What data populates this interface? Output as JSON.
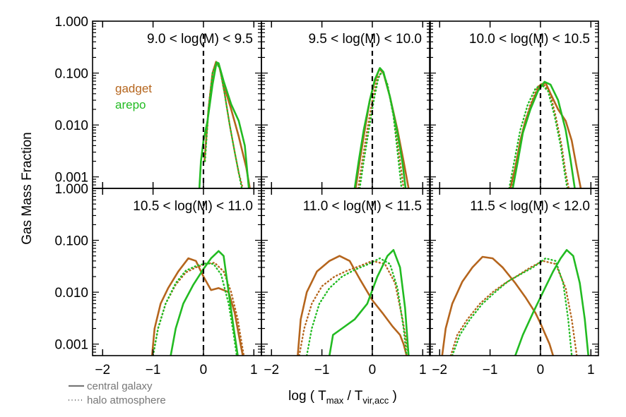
{
  "chart_data": {
    "type": "line",
    "ylabel": "Gas Mass Fraction",
    "xlabel_parts": {
      "prefix": "log ( T",
      "sub1": "max",
      "mid": " / T",
      "sub2": "vir,acc",
      "suffix": " )"
    },
    "xlim": [
      -2.2,
      1.15
    ],
    "ylim": [
      0.0006,
      1.0
    ],
    "yscale": "log",
    "xticks": [
      -2,
      -1,
      0,
      1
    ],
    "xtick_labels": [
      "−2",
      "−1",
      "0",
      "1"
    ],
    "yticks": [
      0.001,
      0.01,
      0.1,
      1.0
    ],
    "ytick_labels": [
      "0.001",
      "0.010",
      "0.100",
      "1.000"
    ],
    "reference_line_x": 0,
    "colors": {
      "gadget": "#b5651d",
      "arepo": "#22bb22",
      "reference": "#000000",
      "line_legend": "#777777"
    },
    "series_legend": [
      {
        "name": "gadget",
        "color": "#b5651d"
      },
      {
        "name": "arepo",
        "color": "#22bb22"
      }
    ],
    "line_legend": [
      {
        "label": "central galaxy",
        "style": "solid"
      },
      {
        "label": "halo atmosphere",
        "style": "dotted"
      }
    ],
    "panels": [
      {
        "title": "9.0 < log(M) <  9.5",
        "series": [
          {
            "name": "gadget",
            "style": "solid",
            "x": [
              0.02,
              0.1,
              0.18,
              0.25,
              0.3,
              0.4,
              0.55,
              0.7,
              0.85,
              0.92
            ],
            "y": [
              0.002,
              0.02,
              0.1,
              0.165,
              0.15,
              0.06,
              0.02,
              0.006,
              0.0015,
              0.0006
            ]
          },
          {
            "name": "gadget",
            "style": "dotted",
            "x": [
              0.03,
              0.1,
              0.18,
              0.25,
              0.32,
              0.42,
              0.52,
              0.62,
              0.7,
              0.78
            ],
            "y": [
              0.002,
              0.02,
              0.1,
              0.16,
              0.13,
              0.04,
              0.01,
              0.003,
              0.0012,
              0.0006
            ]
          },
          {
            "name": "arepo",
            "style": "solid",
            "x": [
              -0.08,
              -0.05,
              0.0,
              0.08,
              0.18,
              0.26,
              0.3,
              0.4,
              0.55,
              0.7,
              0.82,
              0.9
            ],
            "y": [
              0.0006,
              0.002,
              0.005,
              0.012,
              0.06,
              0.16,
              0.155,
              0.07,
              0.025,
              0.012,
              0.004,
              0.0006
            ]
          },
          {
            "name": "arepo",
            "style": "dotted",
            "x": [
              0.03,
              0.1,
              0.18,
              0.26,
              0.33,
              0.42,
              0.52,
              0.62,
              0.7,
              0.76
            ],
            "y": [
              0.002,
              0.02,
              0.1,
              0.155,
              0.12,
              0.04,
              0.01,
              0.003,
              0.0012,
              0.0006
            ]
          }
        ]
      },
      {
        "title": "9.5 < log(M) < 10.0",
        "series": [
          {
            "name": "gadget",
            "style": "solid",
            "x": [
              -0.33,
              -0.25,
              -0.15,
              -0.05,
              0.05,
              0.14,
              0.22,
              0.35,
              0.5,
              0.62,
              0.72
            ],
            "y": [
              0.0006,
              0.002,
              0.008,
              0.03,
              0.07,
              0.12,
              0.1,
              0.035,
              0.008,
              0.002,
              0.0006
            ]
          },
          {
            "name": "gadget",
            "style": "dotted",
            "x": [
              -0.28,
              -0.2,
              -0.1,
              0.0,
              0.1,
              0.2,
              0.3,
              0.42,
              0.55,
              0.62
            ],
            "y": [
              0.0006,
              0.002,
              0.008,
              0.03,
              0.08,
              0.11,
              0.06,
              0.015,
              0.002,
              0.0006
            ]
          },
          {
            "name": "arepo",
            "style": "solid",
            "x": [
              -0.35,
              -0.27,
              -0.17,
              -0.05,
              0.05,
              0.15,
              0.22,
              0.35,
              0.5,
              0.6,
              0.66
            ],
            "y": [
              0.0006,
              0.002,
              0.008,
              0.03,
              0.075,
              0.125,
              0.105,
              0.035,
              0.007,
              0.0018,
              0.0006
            ]
          },
          {
            "name": "arepo",
            "style": "dotted",
            "x": [
              -0.25,
              -0.17,
              -0.07,
              0.03,
              0.12,
              0.2,
              0.3,
              0.42,
              0.52,
              0.58
            ],
            "y": [
              0.0006,
              0.002,
              0.008,
              0.03,
              0.08,
              0.11,
              0.06,
              0.015,
              0.002,
              0.0006
            ]
          }
        ]
      },
      {
        "title": "10.0 < log(M) < 10.5",
        "series": [
          {
            "name": "gadget",
            "style": "solid",
            "x": [
              -0.6,
              -0.5,
              -0.4,
              -0.3,
              -0.15,
              0.0,
              0.1,
              0.2,
              0.35,
              0.5,
              0.62,
              0.72,
              0.8
            ],
            "y": [
              0.0006,
              0.0015,
              0.005,
              0.012,
              0.03,
              0.06,
              0.065,
              0.04,
              0.02,
              0.012,
              0.005,
              0.0015,
              0.0006
            ]
          },
          {
            "name": "gadget",
            "style": "dotted",
            "x": [
              -0.58,
              -0.48,
              -0.35,
              -0.2,
              -0.05,
              0.05,
              0.18,
              0.3,
              0.42,
              0.5,
              0.56
            ],
            "y": [
              0.0006,
              0.002,
              0.008,
              0.025,
              0.055,
              0.062,
              0.045,
              0.015,
              0.004,
              0.0012,
              0.0006
            ]
          },
          {
            "name": "arepo",
            "style": "solid",
            "x": [
              -0.55,
              -0.45,
              -0.35,
              -0.2,
              -0.05,
              0.08,
              0.2,
              0.35,
              0.5,
              0.6,
              0.68
            ],
            "y": [
              0.0006,
              0.002,
              0.007,
              0.02,
              0.045,
              0.068,
              0.06,
              0.03,
              0.008,
              0.002,
              0.0006
            ]
          },
          {
            "name": "arepo",
            "style": "dotted",
            "x": [
              -0.62,
              -0.52,
              -0.4,
              -0.25,
              -0.1,
              0.02,
              0.15,
              0.28,
              0.4,
              0.48,
              0.53
            ],
            "y": [
              0.0006,
              0.002,
              0.008,
              0.025,
              0.05,
              0.06,
              0.045,
              0.015,
              0.004,
              0.0012,
              0.0006
            ]
          }
        ]
      },
      {
        "title": "10.5 < log(M) < 11.0",
        "series": [
          {
            "name": "gadget",
            "style": "solid",
            "x": [
              -1.02,
              -0.97,
              -0.85,
              -0.7,
              -0.5,
              -0.3,
              -0.15,
              0.0,
              0.15,
              0.3,
              0.5,
              0.62,
              0.72,
              0.78
            ],
            "y": [
              0.0006,
              0.002,
              0.006,
              0.012,
              0.025,
              0.045,
              0.04,
              0.02,
              0.011,
              0.012,
              0.01,
              0.004,
              0.0012,
              0.0006
            ]
          },
          {
            "name": "gadget",
            "style": "dotted",
            "x": [
              -1.0,
              -0.9,
              -0.75,
              -0.55,
              -0.35,
              -0.15,
              0.05,
              0.22,
              0.4,
              0.55,
              0.68,
              0.8
            ],
            "y": [
              0.0006,
              0.002,
              0.006,
              0.014,
              0.024,
              0.03,
              0.035,
              0.037,
              0.025,
              0.01,
              0.003,
              0.0006
            ]
          },
          {
            "name": "arepo",
            "style": "solid",
            "x": [
              -0.65,
              -0.55,
              -0.4,
              -0.2,
              0.0,
              0.15,
              0.3,
              0.4,
              0.5,
              0.6,
              0.68
            ],
            "y": [
              0.0006,
              0.002,
              0.006,
              0.014,
              0.028,
              0.045,
              0.062,
              0.05,
              0.01,
              0.002,
              0.0006
            ]
          },
          {
            "name": "arepo",
            "style": "dotted",
            "x": [
              -1.0,
              -0.9,
              -0.75,
              -0.55,
              -0.35,
              -0.15,
              0.05,
              0.2,
              0.35,
              0.5,
              0.6,
              0.66
            ],
            "y": [
              0.0006,
              0.002,
              0.006,
              0.015,
              0.026,
              0.032,
              0.036,
              0.035,
              0.022,
              0.006,
              0.0015,
              0.0006
            ]
          }
        ]
      },
      {
        "title": "11.0 < log(M) < 11.5",
        "series": [
          {
            "name": "gadget",
            "style": "solid",
            "x": [
              -1.48,
              -1.42,
              -1.3,
              -1.1,
              -0.85,
              -0.65,
              -0.45,
              -0.25,
              0.0,
              0.2,
              0.4,
              0.55,
              0.62,
              0.68
            ],
            "y": [
              0.0006,
              0.003,
              0.01,
              0.025,
              0.04,
              0.05,
              0.04,
              0.018,
              0.007,
              0.004,
              0.0022,
              0.0015,
              0.001,
              0.0006
            ]
          },
          {
            "name": "gadget",
            "style": "dotted",
            "x": [
              -1.45,
              -1.35,
              -1.2,
              -1.0,
              -0.75,
              -0.5,
              -0.25,
              0.0,
              0.25,
              0.45,
              0.6,
              0.72
            ],
            "y": [
              0.0006,
              0.002,
              0.006,
              0.013,
              0.02,
              0.026,
              0.032,
              0.04,
              0.035,
              0.015,
              0.003,
              0.0006
            ]
          },
          {
            "name": "arepo",
            "style": "solid",
            "x": [
              -0.85,
              -0.78,
              -0.6,
              -0.35,
              -0.1,
              0.1,
              0.3,
              0.42,
              0.55,
              0.65,
              0.72
            ],
            "y": [
              0.0006,
              0.0015,
              0.002,
              0.003,
              0.006,
              0.02,
              0.05,
              0.065,
              0.03,
              0.005,
              0.0006
            ]
          },
          {
            "name": "arepo",
            "style": "dotted",
            "x": [
              -1.3,
              -1.2,
              -1.05,
              -0.85,
              -0.6,
              -0.35,
              -0.1,
              0.15,
              0.35,
              0.5,
              0.62,
              0.68
            ],
            "y": [
              0.0006,
              0.002,
              0.006,
              0.012,
              0.02,
              0.027,
              0.034,
              0.045,
              0.035,
              0.012,
              0.002,
              0.0006
            ]
          }
        ]
      },
      {
        "title": "11.5 < log(M) < 12.0",
        "series": [
          {
            "name": "gadget",
            "style": "solid",
            "x": [
              -1.95,
              -1.88,
              -1.75,
              -1.55,
              -1.35,
              -1.15,
              -0.95,
              -0.75,
              -0.5,
              -0.3,
              -0.1,
              0.0,
              0.1,
              0.18,
              0.25
            ],
            "y": [
              0.0006,
              0.002,
              0.006,
              0.016,
              0.03,
              0.048,
              0.045,
              0.03,
              0.015,
              0.008,
              0.004,
              0.0025,
              0.0015,
              0.001,
              0.0006
            ]
          },
          {
            "name": "gadget",
            "style": "dotted",
            "x": [
              -1.78,
              -1.65,
              -1.45,
              -1.2,
              -0.95,
              -0.7,
              -0.45,
              -0.2,
              0.05,
              0.3,
              0.5,
              0.62,
              0.72
            ],
            "y": [
              0.0006,
              0.0015,
              0.003,
              0.006,
              0.01,
              0.015,
              0.021,
              0.03,
              0.04,
              0.035,
              0.012,
              0.003,
              0.0006
            ]
          },
          {
            "name": "arepo",
            "style": "solid",
            "x": [
              -0.5,
              -0.35,
              -0.15,
              0.05,
              0.25,
              0.4,
              0.52,
              0.65,
              0.78,
              0.88,
              0.95
            ],
            "y": [
              0.0006,
              0.0015,
              0.004,
              0.01,
              0.025,
              0.045,
              0.065,
              0.05,
              0.015,
              0.003,
              0.0006
            ]
          },
          {
            "name": "arepo",
            "style": "dotted",
            "x": [
              -1.75,
              -1.6,
              -1.4,
              -1.15,
              -0.9,
              -0.65,
              -0.4,
              -0.15,
              0.1,
              0.3,
              0.45,
              0.55,
              0.62
            ],
            "y": [
              0.0006,
              0.0015,
              0.003,
              0.006,
              0.01,
              0.016,
              0.022,
              0.03,
              0.045,
              0.04,
              0.015,
              0.003,
              0.0006
            ]
          }
        ]
      }
    ]
  }
}
